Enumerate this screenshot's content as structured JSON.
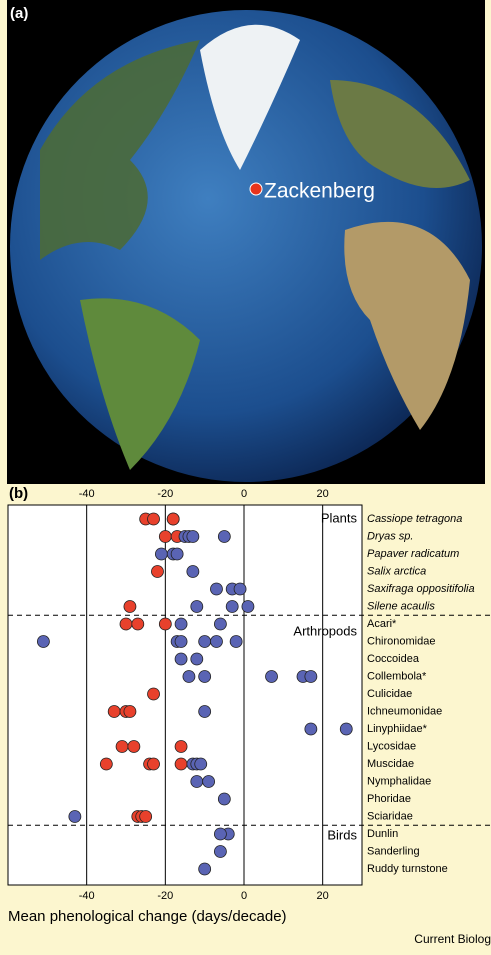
{
  "panel_a": {
    "label": "(a)",
    "place": "Zackenberg"
  },
  "chart_data": {
    "type": "dot",
    "panel_label": "(b)",
    "xlabel": "Mean phenological change (days/decade)",
    "source": "Current Biolog",
    "xlim": [
      -60,
      30
    ],
    "xticks": [
      -40,
      -20,
      0,
      20
    ],
    "grid": true,
    "groups": [
      {
        "label": "Plants",
        "italic": true,
        "categories": [
          "Cassiope tetragona",
          "Dryas sp.",
          "Papaver radicatum",
          "Salix arctica",
          "Saxifraga oppositifolia",
          "Silene acaulis"
        ]
      },
      {
        "label": "Arthropods",
        "italic": false,
        "categories": [
          "Acari*",
          "Chironomidae",
          "Coccoidea",
          "Collembola*",
          "Culicidae",
          "Ichneumonidae",
          "Linyphiidae*",
          "Lycosidae",
          "Muscidae",
          "Nymphalidae",
          "Phoridae",
          "Sciaridae"
        ]
      },
      {
        "label": "Birds",
        "italic": false,
        "categories": [
          "Dunlin",
          "Sanderling",
          "Ruddy turnstone"
        ]
      }
    ],
    "series": [
      {
        "color": "#e8412c",
        "values": [
          [
            -25,
            -23,
            -18,
            -18
          ],
          [
            -20,
            -17
          ],
          [],
          [
            -22
          ],
          [],
          [
            -29
          ],
          [
            -30,
            -27,
            -20
          ],
          [],
          [],
          [],
          [
            -23
          ],
          [
            -33,
            -30,
            -29
          ],
          [],
          [
            -31,
            -28,
            -16
          ],
          [
            -35,
            -24,
            -23,
            -16
          ],
          [],
          [],
          [
            -27,
            -26,
            -25
          ],
          [],
          [],
          []
        ]
      },
      {
        "color": "#5a64b4",
        "values": [
          [],
          [
            -15,
            -14,
            -13,
            -5
          ],
          [
            -21,
            -18,
            -17
          ],
          [
            -13
          ],
          [
            -7,
            -3,
            -1
          ],
          [
            -12,
            -3,
            1
          ],
          [
            -16,
            -6
          ],
          [
            -51,
            -17,
            -16,
            -10,
            -7,
            -2
          ],
          [
            -16,
            -12
          ],
          [
            -14,
            -10,
            7,
            15,
            17
          ],
          [],
          [
            -10
          ],
          [
            17,
            26
          ],
          [],
          [
            -13,
            -12,
            -11
          ],
          [
            -12,
            -9
          ],
          [
            -5
          ],
          [
            -43
          ],
          [
            -4,
            -6
          ],
          [
            -6
          ],
          [
            -10
          ]
        ]
      }
    ]
  }
}
